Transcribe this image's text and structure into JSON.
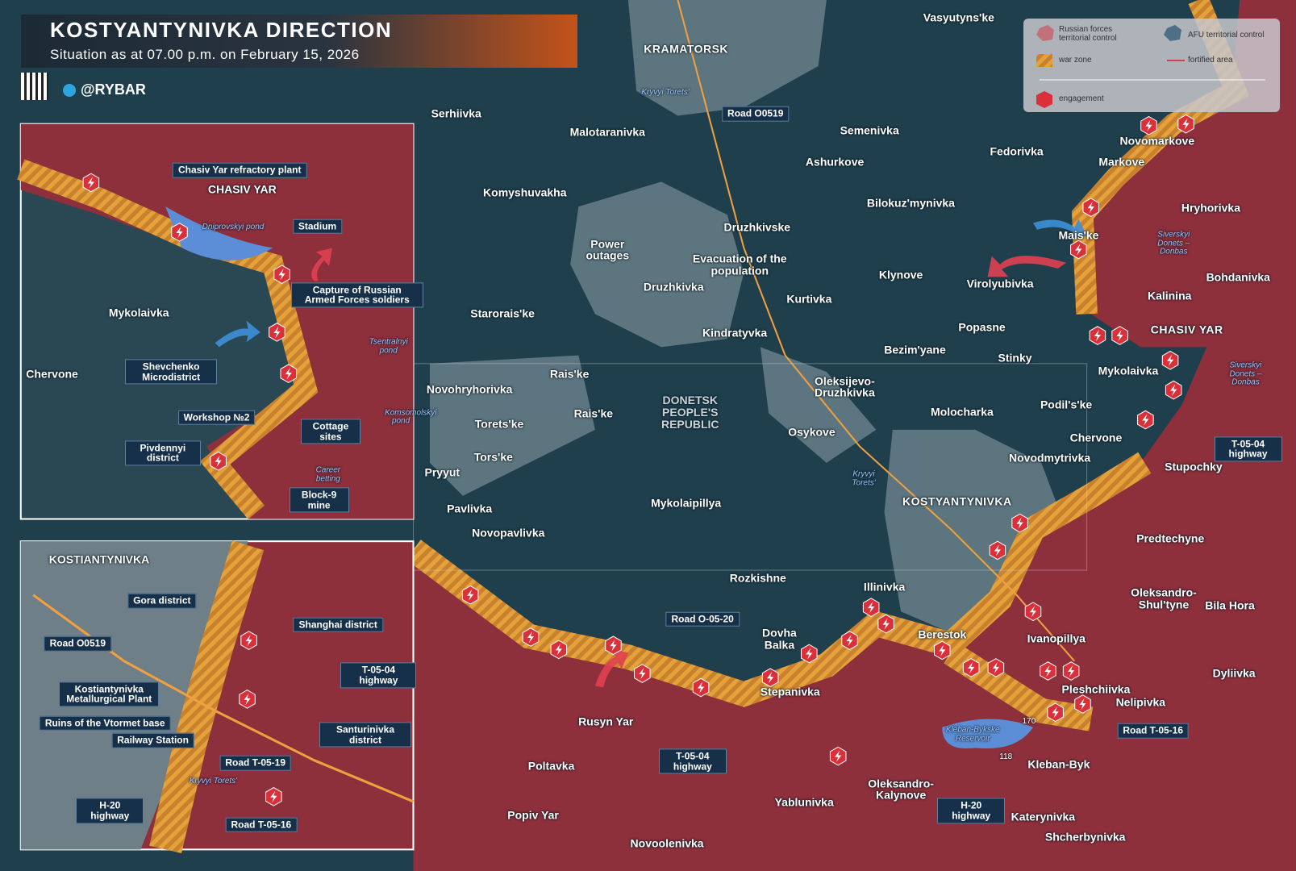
{
  "header": {
    "title": "KOSTYANTYNIVKA DIRECTION",
    "subtitle": "Situation as at 07.00 p.m. on February 15, 2026",
    "handle": "@RYBAR"
  },
  "legend": {
    "russian": "Russian forces territorial control",
    "afu": "AFU territorial control",
    "war_zone": "war zone",
    "fortified": "fortified area",
    "engagement": "engagement"
  },
  "map": {
    "region": "DONETSK PEOPLE'S REPUBLIC",
    "places": [
      "Vasyutyns'ke",
      "KRAMATORSK",
      "Serhiivka",
      "Malotaranivka",
      "Semenivka",
      "Fedorivka",
      "Novomarkove",
      "Markove",
      "Ashurkove",
      "Komyshuvakha",
      "Bilokuz'mynivka",
      "Hryhorivka",
      "Druzhkivske",
      "Mais'ke",
      "Klynove",
      "Virolyubivka",
      "Bohdanivka",
      "Kurtivka",
      "Kalinina",
      "Starorais'ke",
      "Druzhkivka",
      "Popasne",
      "CHASIV YAR",
      "Kindratyvka",
      "Bezim'yane",
      "Stinky",
      "Mykolaivka",
      "Oleksijevo-Druzhkivka",
      "Rais'ke",
      "Novohryhorivka",
      "Rais'ke",
      "Molocharka",
      "Podil's'ke",
      "Torets'ke",
      "Osykove",
      "Chervone",
      "Tors'ke",
      "Novodmytrivka",
      "Pryyut",
      "Stupochky",
      "Pavlivka",
      "Mykolaipillya",
      "KOSTYANTYNIVKA",
      "Novopavlivka",
      "Predtechyne",
      "Rozkishne",
      "Illinivka",
      "Oleksandro-Shul'tyne",
      "Bila Hora",
      "Dovha Balka",
      "Berestok",
      "Ivanopillya",
      "Dyliivka",
      "Stepanivka",
      "Pleshchiivka",
      "Nelipivka",
      "Rusyn Yar",
      "Kleban-Byk",
      "Poltavka",
      "Oleksandro-Kalynove",
      "Yablunivka",
      "Katerynivka",
      "Popiv Yar",
      "Novoolenivka",
      "Shcherbynivka"
    ],
    "water": [
      "Kryvyi Torets'",
      "Kryvyi Torets'",
      "Siverskyi Donets – Donbas",
      "Siverskyi Donets – Donbas",
      "Kleban-Bykske Reservoir"
    ],
    "callouts": [
      "Power outages",
      "Evacuation of the population"
    ],
    "roads": [
      "Road O0519",
      "Road O-05-20",
      "T-05-04 highway",
      "T-05-04 highway",
      "H-20 highway",
      "Road T-05-16"
    ],
    "heights": [
      "170",
      "118"
    ]
  },
  "inset_chasiv_yar": {
    "labels": [
      "Chasiv Yar refractory plant",
      "CHASIV YAR",
      "Dniprovskyi pond",
      "Stadium",
      "Capture of Russian Armed Forces soldiers",
      "Mykolaivka",
      "Tsentralnyi pond",
      "Chervone",
      "Shevchenko Microdistrict",
      "Workshop №2",
      "Cottage sites",
      "Komsomolskyi pond",
      "Pivdennyi district",
      "Career betting",
      "Block-9 mine"
    ]
  },
  "inset_kostiantynivka": {
    "labels": [
      "KOSTIANTYNIVKA",
      "Gora district",
      "Shanghai district",
      "Road O0519",
      "T-05-04 highway",
      "Kostiantynivka Metallurgical Plant",
      "Ruins of the Vtormet base",
      "Railway Station",
      "Santurinivka district",
      "Road T-05-19",
      "H-20 highway",
      "Road T-05-16",
      "Kryvyi Torets'"
    ]
  }
}
